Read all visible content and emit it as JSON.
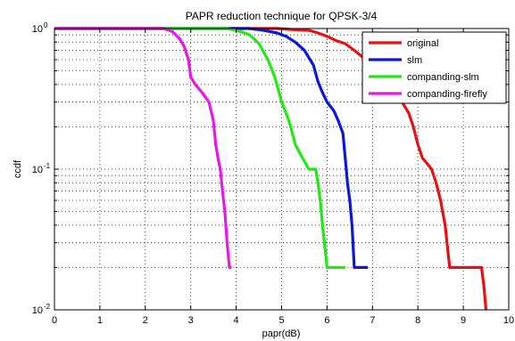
{
  "chart_data": {
    "type": "line",
    "title": "PAPR reduction technique for QPSK-3/4",
    "xlabel": "papr(dB)",
    "ylabel": "ccdf",
    "xlim": [
      0,
      10
    ],
    "ylim": [
      0.01,
      1
    ],
    "yscale": "log",
    "grid": true,
    "legend_position": "top-right",
    "x_ticks": [
      "0",
      "1",
      "2",
      "3",
      "4",
      "5",
      "6",
      "7",
      "8",
      "9",
      "10"
    ],
    "y_ticks": [
      {
        "value": 1,
        "base": "10",
        "exp": "0"
      },
      {
        "value": 0.1,
        "base": "10",
        "exp": "-1"
      },
      {
        "value": 0.01,
        "base": "10",
        "exp": "-2"
      }
    ],
    "series": [
      {
        "name": "original",
        "color": "#e81010",
        "points": [
          [
            0.0,
            1.0
          ],
          [
            4.9,
            1.0
          ],
          [
            5.3,
            0.98
          ],
          [
            5.6,
            0.97
          ],
          [
            5.8,
            0.93
          ],
          [
            6.0,
            0.88
          ],
          [
            6.2,
            0.82
          ],
          [
            6.4,
            0.78
          ],
          [
            6.6,
            0.7
          ],
          [
            6.8,
            0.62
          ],
          [
            7.0,
            0.55
          ],
          [
            7.2,
            0.47
          ],
          [
            7.4,
            0.4
          ],
          [
            7.6,
            0.32
          ],
          [
            7.8,
            0.25
          ],
          [
            7.9,
            0.2
          ],
          [
            8.0,
            0.15
          ],
          [
            8.1,
            0.12
          ],
          [
            8.2,
            0.11
          ],
          [
            8.3,
            0.1
          ],
          [
            8.4,
            0.08
          ],
          [
            8.5,
            0.06
          ],
          [
            8.6,
            0.04
          ],
          [
            8.7,
            0.02
          ],
          [
            9.1,
            0.02
          ],
          [
            9.4,
            0.02
          ],
          [
            9.45,
            0.015
          ],
          [
            9.5,
            0.01
          ]
        ]
      },
      {
        "name": "slm",
        "color": "#0a18d8",
        "points": [
          [
            0.0,
            1.0
          ],
          [
            4.3,
            1.0
          ],
          [
            4.6,
            0.97
          ],
          [
            4.9,
            0.93
          ],
          [
            5.1,
            0.88
          ],
          [
            5.3,
            0.8
          ],
          [
            5.5,
            0.7
          ],
          [
            5.7,
            0.55
          ],
          [
            5.8,
            0.42
          ],
          [
            5.9,
            0.35
          ],
          [
            6.0,
            0.3
          ],
          [
            6.15,
            0.26
          ],
          [
            6.25,
            0.22
          ],
          [
            6.35,
            0.18
          ],
          [
            6.4,
            0.12
          ],
          [
            6.45,
            0.08
          ],
          [
            6.5,
            0.06
          ],
          [
            6.55,
            0.04
          ],
          [
            6.6,
            0.02
          ],
          [
            6.65,
            0.02
          ],
          [
            6.9,
            0.02
          ]
        ]
      },
      {
        "name": "companding-slm",
        "color": "#22e818",
        "points": [
          [
            0.0,
            1.0
          ],
          [
            3.8,
            1.0
          ],
          [
            4.1,
            0.95
          ],
          [
            4.3,
            0.9
          ],
          [
            4.5,
            0.78
          ],
          [
            4.7,
            0.6
          ],
          [
            4.85,
            0.45
          ],
          [
            5.0,
            0.3
          ],
          [
            5.1,
            0.25
          ],
          [
            5.2,
            0.2
          ],
          [
            5.3,
            0.15
          ],
          [
            5.4,
            0.13
          ],
          [
            5.6,
            0.1
          ],
          [
            5.75,
            0.1
          ],
          [
            5.8,
            0.08
          ],
          [
            5.85,
            0.06
          ],
          [
            5.9,
            0.04
          ],
          [
            6.0,
            0.02
          ],
          [
            6.1,
            0.02
          ],
          [
            6.4,
            0.02
          ]
        ]
      },
      {
        "name": "companding-firefly",
        "color": "#e818e8",
        "points": [
          [
            0.0,
            1.0
          ],
          [
            2.4,
            1.0
          ],
          [
            2.6,
            0.95
          ],
          [
            2.75,
            0.85
          ],
          [
            2.85,
            0.75
          ],
          [
            2.95,
            0.6
          ],
          [
            3.0,
            0.45
          ],
          [
            3.1,
            0.4
          ],
          [
            3.25,
            0.35
          ],
          [
            3.4,
            0.3
          ],
          [
            3.5,
            0.22
          ],
          [
            3.55,
            0.15
          ],
          [
            3.6,
            0.12
          ],
          [
            3.65,
            0.1
          ],
          [
            3.7,
            0.07
          ],
          [
            3.75,
            0.05
          ],
          [
            3.8,
            0.03
          ],
          [
            3.85,
            0.02
          ],
          [
            3.9,
            0.02
          ]
        ]
      }
    ]
  }
}
